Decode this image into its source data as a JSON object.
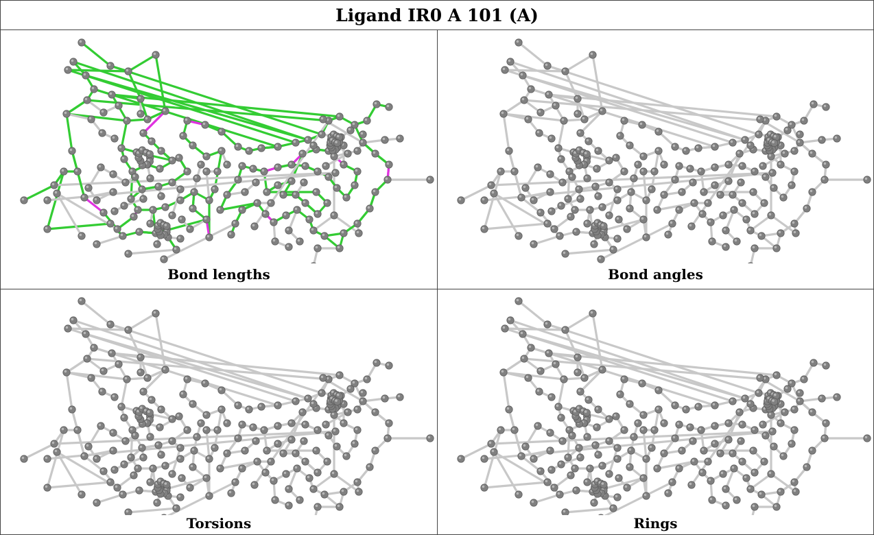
{
  "title": "Ligand IR0 A 101 (A)",
  "panels": [
    {
      "caption": "Bond lengths",
      "highlight": true
    },
    {
      "caption": "Bond angles",
      "highlight": false
    },
    {
      "caption": "Torsions",
      "highlight": false
    },
    {
      "caption": "Rings",
      "highlight": false
    }
  ],
  "colors": {
    "atom": "#808080",
    "bond": "#c8c8c8",
    "bond_ok": "#33cc33",
    "bond_outlier": "#e033e0",
    "border": "#444444"
  }
}
